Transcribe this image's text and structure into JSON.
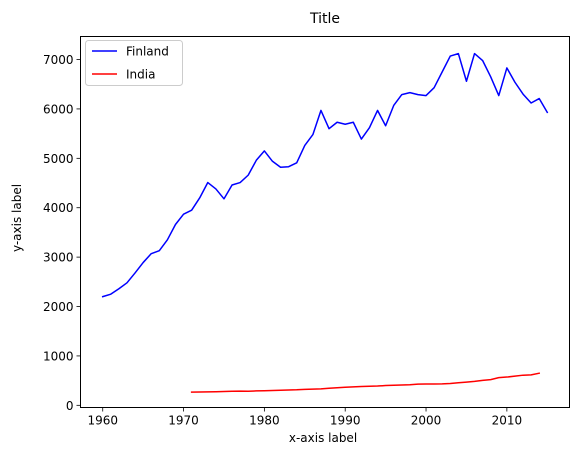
{
  "chart_data": {
    "type": "line",
    "title": "Title",
    "xlabel": "x-axis label",
    "ylabel": "y-axis label",
    "xlim": [
      1957.25,
      2017.75
    ],
    "ylim": [
      -44.1,
      7466.1
    ],
    "xticks": [
      1960,
      1970,
      1980,
      1990,
      2000,
      2010
    ],
    "yticks": [
      0,
      1000,
      2000,
      3000,
      4000,
      5000,
      6000,
      7000
    ],
    "grid": false,
    "legend": "upper-left",
    "series": [
      {
        "name": "Finland",
        "color": "#0000ff",
        "x": [
          1960,
          1961,
          1962,
          1963,
          1964,
          1965,
          1966,
          1967,
          1968,
          1969,
          1970,
          1971,
          1972,
          1973,
          1974,
          1975,
          1976,
          1977,
          1978,
          1979,
          1980,
          1981,
          1982,
          1983,
          1984,
          1985,
          1986,
          1987,
          1988,
          1989,
          1990,
          1991,
          1992,
          1993,
          1994,
          1995,
          1996,
          1997,
          1998,
          1999,
          2000,
          2001,
          2002,
          2003,
          2004,
          2005,
          2006,
          2007,
          2008,
          2009,
          2010,
          2011,
          2012,
          2013,
          2014,
          2015
        ],
        "y": [
          2200,
          2250,
          2360,
          2480,
          2680,
          2890,
          3070,
          3130,
          3350,
          3660,
          3870,
          3950,
          4200,
          4510,
          4380,
          4180,
          4460,
          4510,
          4660,
          4960,
          5150,
          4940,
          4820,
          4830,
          4910,
          5260,
          5480,
          5970,
          5600,
          5730,
          5690,
          5730,
          5390,
          5620,
          5970,
          5660,
          6070,
          6290,
          6330,
          6290,
          6270,
          6430,
          6750,
          7070,
          7120,
          6560,
          7120,
          6980,
          6650,
          6270,
          6830,
          6540,
          6300,
          6120,
          6210,
          5930
        ]
      },
      {
        "name": "India",
        "color": "#ff0000",
        "x": [
          1971,
          1972,
          1973,
          1974,
          1975,
          1976,
          1977,
          1978,
          1979,
          1980,
          1981,
          1982,
          1983,
          1984,
          1985,
          1986,
          1987,
          1988,
          1989,
          1990,
          1991,
          1992,
          1993,
          1994,
          1995,
          1996,
          1997,
          1998,
          1999,
          2000,
          2001,
          2002,
          2003,
          2004,
          2005,
          2006,
          2007,
          2008,
          2009,
          2010,
          2011,
          2012,
          2013,
          2014
        ],
        "y": [
          268,
          270,
          272,
          276,
          280,
          285,
          288,
          286,
          292,
          296,
          300,
          306,
          310,
          314,
          322,
          328,
          334,
          346,
          356,
          366,
          374,
          380,
          386,
          390,
          400,
          406,
          412,
          416,
          428,
          432,
          432,
          434,
          442,
          456,
          470,
          484,
          504,
          520,
          560,
          572,
          590,
          610,
          616,
          650
        ]
      }
    ]
  }
}
